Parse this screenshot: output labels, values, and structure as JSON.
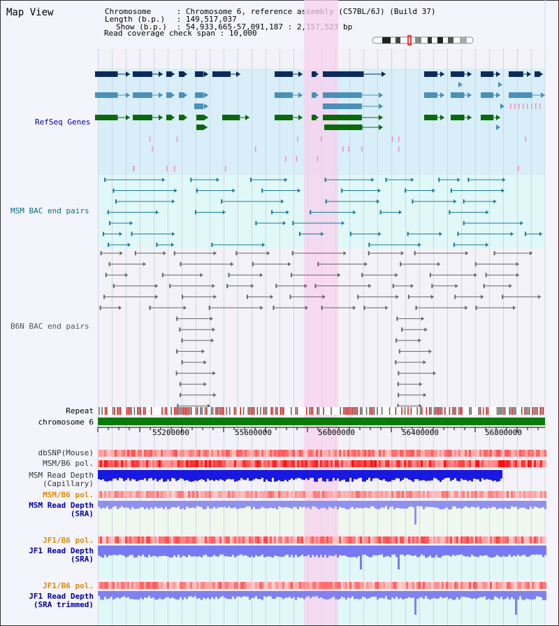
{
  "title": "Map View",
  "header": {
    "chromosome_key": "Chromosome",
    "chromosome_val": "Chromosome 6, reference assembly (C57BL/6J) (Build 37)",
    "length_key": "Length (b.p.)",
    "length_val": "149,517,037",
    "show_key": "Show (b.p.)",
    "show_val": "54,933,665-57,091,187 : 2,157,523 bp",
    "coverage_key": "Read coverage check span",
    "coverage_val": "10,000"
  },
  "tracks": {
    "refseq": "RefSeq Genes",
    "msm_bac": "MSM BAC end pairs",
    "b6n_bac": "B6N BAC end pairs",
    "repeat": "Repeat",
    "chromosome": "chromosome 6",
    "dbsnp": "dbSNP(Mouse)",
    "msm_b6_pol_1": "MSM/B6 pol.",
    "msm_read_depth_cap_1": "MSM Read Depth",
    "msm_read_depth_cap_2": "(Capillary)",
    "msm_b6_pol_2": "MSM/B6 pol.",
    "msm_read_depth_sra_1": "MSM Read Depth",
    "msm_read_depth_sra_2": "(SRA)",
    "jf1_b6_pol_1": "JF1/B6 pol.",
    "jf1_read_depth_sra_1": "JF1 Read Depth",
    "jf1_read_depth_sra_2": "(SRA)",
    "jf1_b6_pol_2": "JF1/B6 pol.",
    "jf1_read_depth_trim_1": "JF1 Read Depth",
    "jf1_read_depth_trim_2": "(SRA trimmed)"
  },
  "axis_ticks": [
    "55200000",
    "55600000",
    "56000000",
    "56400000",
    "56800000"
  ],
  "colors": {
    "refseq_bg": "#d8eef8",
    "bac_bg": "#e0f8f8",
    "highlight": "#f8d8f0",
    "gene_dark": "#0a2a5a",
    "gene_mid": "#4a90b8",
    "gene_green": "#0a6a0a",
    "chrom_green": "#0a7a0a",
    "msm_label": "#007080",
    "blue_label": "#0000a0",
    "orange_label": "#e08a00"
  }
}
